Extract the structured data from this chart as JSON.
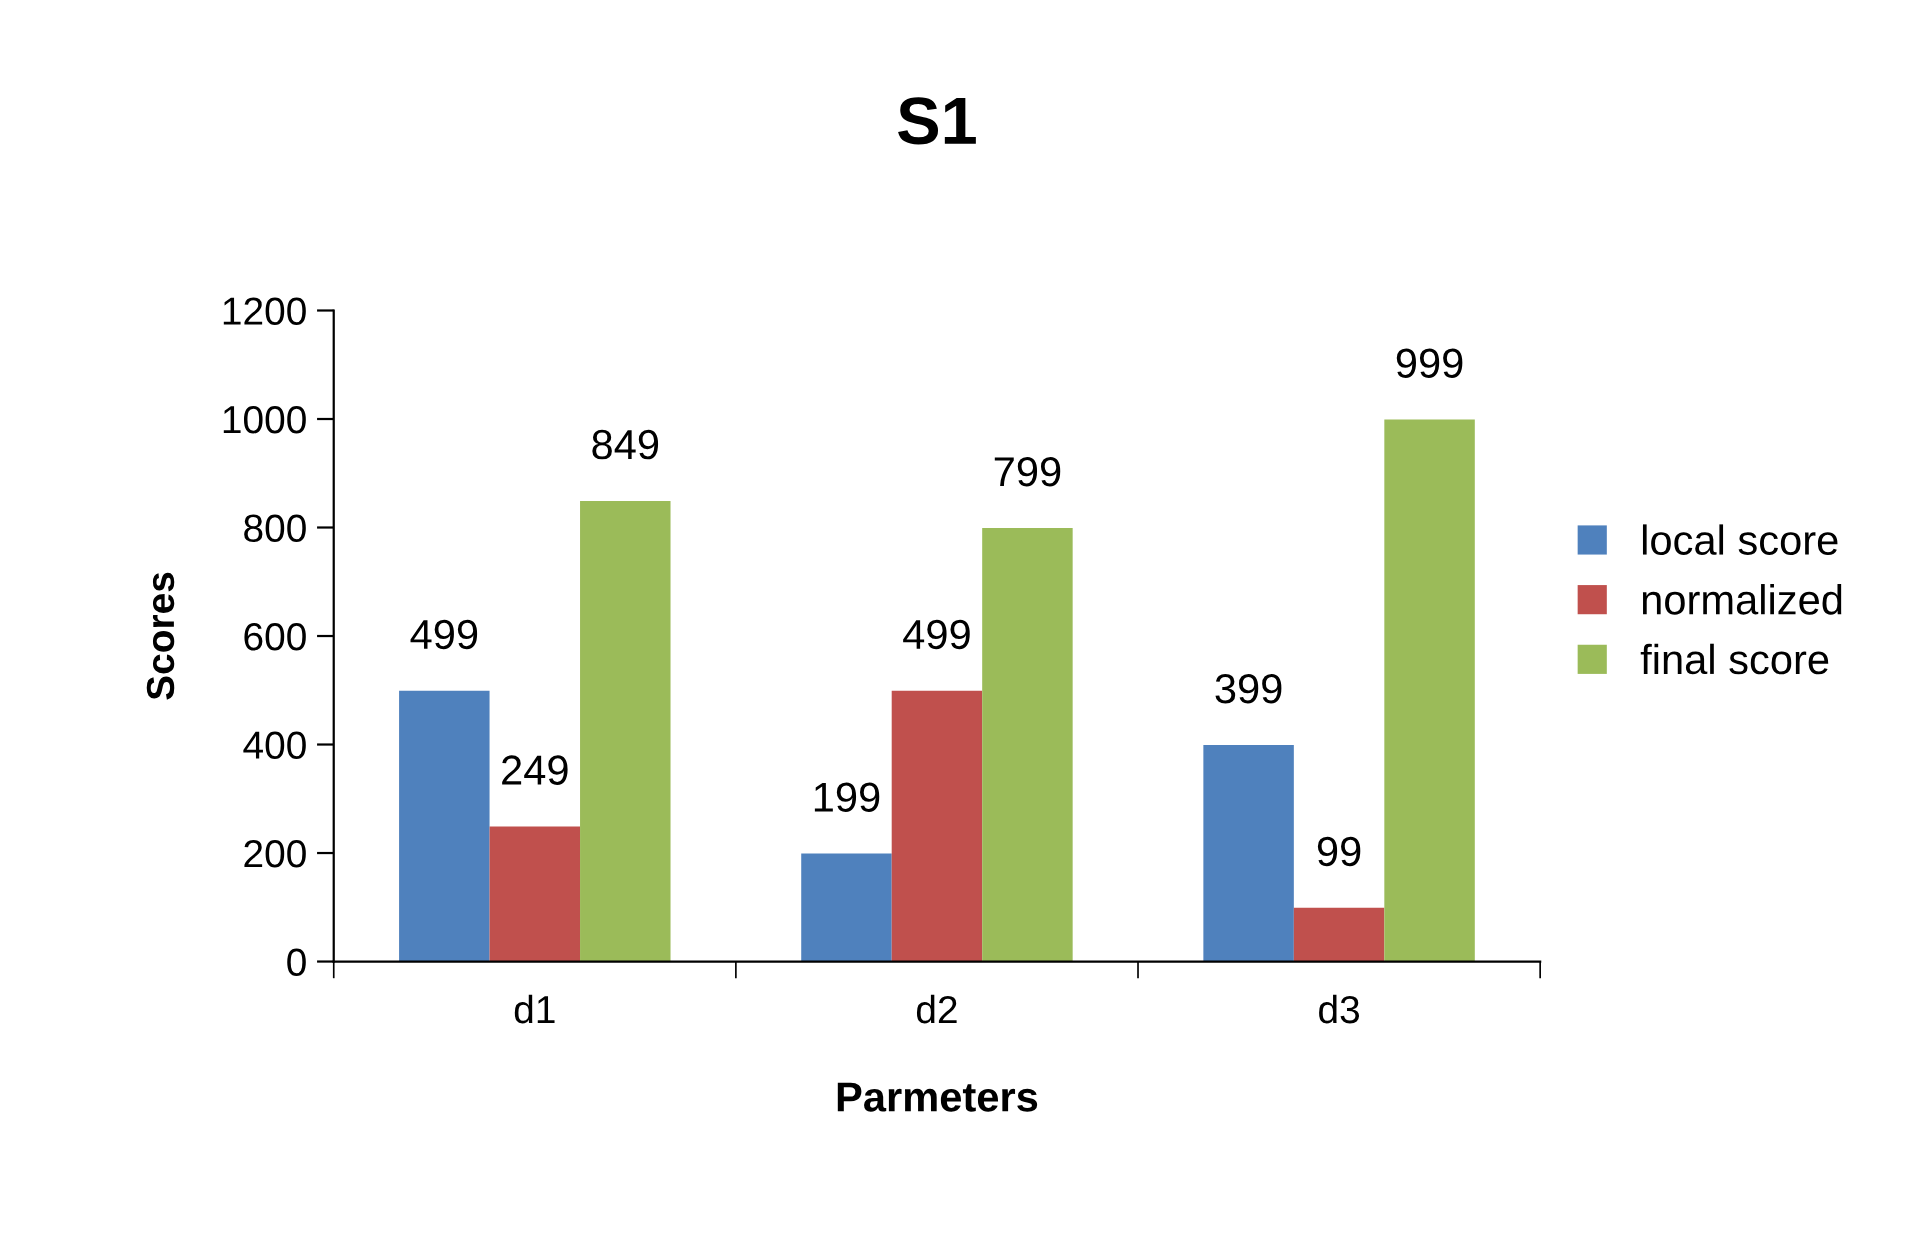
{
  "chart_data": {
    "type": "bar",
    "title": "S1",
    "xlabel": "Parmeters",
    "ylabel": "Scores",
    "categories": [
      "d1",
      "d2",
      "d3"
    ],
    "series": [
      {
        "name": "local score",
        "color": "#4f81bd",
        "values": [
          499,
          199,
          399
        ]
      },
      {
        "name": "normalized",
        "color": "#c0504d",
        "values": [
          249,
          499,
          99
        ]
      },
      {
        "name": "final score",
        "color": "#9bbb59",
        "values": [
          849,
          799,
          999
        ]
      }
    ],
    "ylim": [
      0,
      1200
    ],
    "yticks": [
      0,
      200,
      400,
      600,
      800,
      1000,
      1200
    ],
    "grid": false,
    "legend": "right",
    "data_labels": true
  }
}
